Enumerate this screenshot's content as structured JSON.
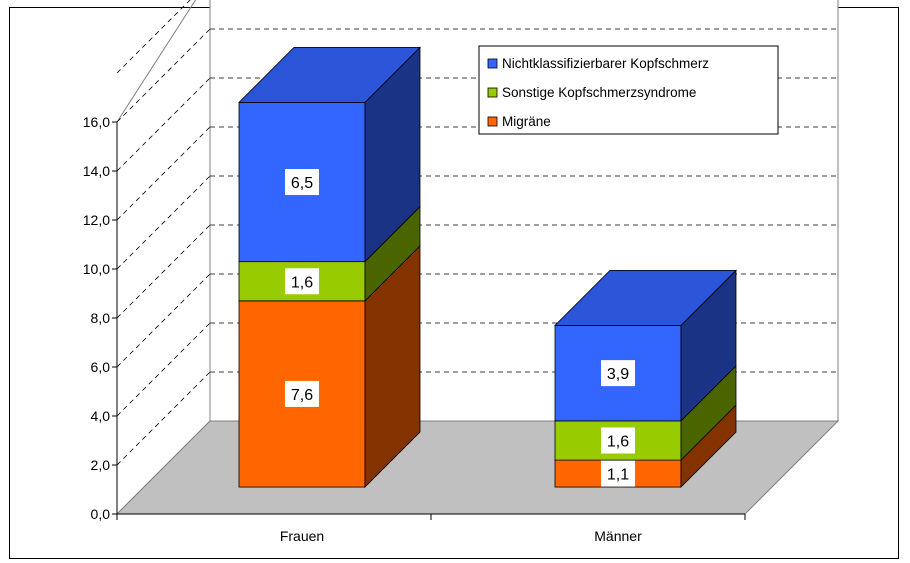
{
  "chart_data": {
    "type": "bar",
    "stacked": true,
    "three_d": true,
    "categories": [
      "Frauen",
      "Männer"
    ],
    "series": [
      {
        "name": "Migräne",
        "values": [
          7.6,
          1.1
        ],
        "labels": [
          "7,6",
          "1,1"
        ],
        "color": "#FF6600",
        "side_color": "#833200",
        "top_color": "#FF6600"
      },
      {
        "name": "Sonstige Kopfschmerzsyndrome",
        "values": [
          1.6,
          1.6
        ],
        "labels": [
          "1,6",
          "1,6"
        ],
        "color": "#99CC00",
        "side_color": "#4A6400",
        "top_color": "#99CC00"
      },
      {
        "name": "Nichtklassifizierbarer Kopfschmerz",
        "values": [
          6.5,
          3.9
        ],
        "labels": [
          "6,5",
          "3,9"
        ],
        "color": "#3366FF",
        "side_color": "#1A3384",
        "top_color": "#2A55D8"
      }
    ],
    "yticks": [
      "0,0",
      "2,0",
      "4,0",
      "6,0",
      "8,0",
      "10,0",
      "12,0",
      "14,0",
      "16,0"
    ],
    "ylim": [
      0,
      16
    ],
    "gridlines": "dashed",
    "floor_color": "#C0C0C0",
    "legend_position": "top-right",
    "legend_order": [
      "Nichtklassifizierbarer Kopfschmerz",
      "Sonstige Kopfschmerzsyndrome",
      "Migräne"
    ]
  }
}
